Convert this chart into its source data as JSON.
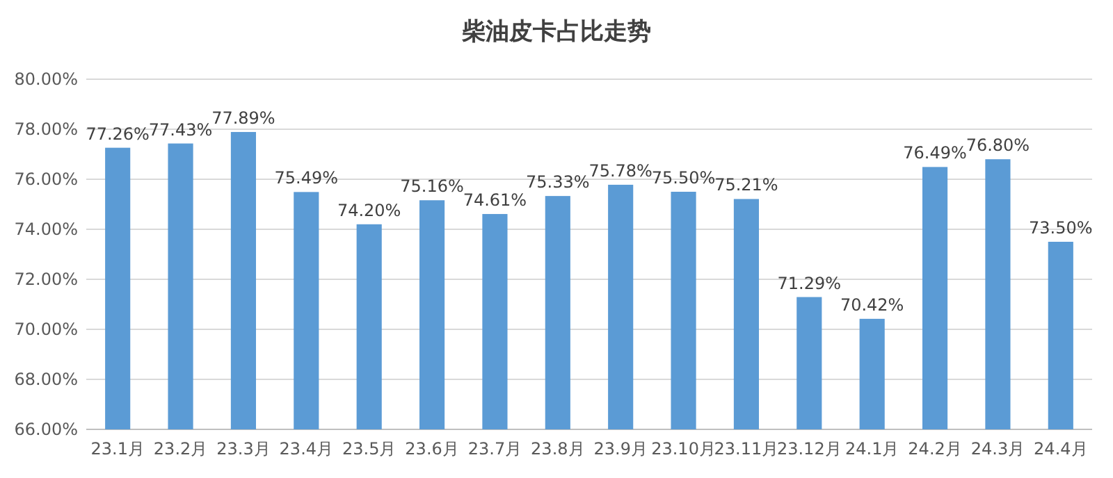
{
  "chart_data": {
    "type": "bar",
    "title": "柴油皮卡占比走势",
    "categories": [
      "23.1月",
      "23.2月",
      "23.3月",
      "23.4月",
      "23.5月",
      "23.6月",
      "23.7月",
      "23.8月",
      "23.9月",
      "23.10月",
      "23.11月",
      "23.12月",
      "24.1月",
      "24.2月",
      "24.3月",
      "24.4月"
    ],
    "values": [
      77.26,
      77.43,
      77.89,
      75.49,
      74.2,
      75.16,
      74.61,
      75.33,
      75.78,
      75.5,
      75.21,
      71.29,
      70.42,
      76.49,
      76.8,
      73.5
    ],
    "value_labels": [
      "77.26%",
      "77.43%",
      "77.89%",
      "75.49%",
      "74.20%",
      "75.16%",
      "74.61%",
      "75.33%",
      "75.78%",
      "75.50%",
      "75.21%",
      "71.29%",
      "70.42%",
      "76.49%",
      "76.80%",
      "73.50%"
    ],
    "color": "#5b9bd5",
    "ylim": [
      66,
      80
    ],
    "yticks": [
      {
        "value": 66,
        "label": "66.00%"
      },
      {
        "value": 68,
        "label": "68.00%"
      },
      {
        "value": 70,
        "label": "70.00%"
      },
      {
        "value": 72,
        "label": "72.00%"
      },
      {
        "value": 74,
        "label": "74.00%"
      },
      {
        "value": 76,
        "label": "76.00%"
      },
      {
        "value": 78,
        "label": "78.00%"
      },
      {
        "value": 80,
        "label": "80.00%"
      }
    ],
    "grid": "y"
  }
}
